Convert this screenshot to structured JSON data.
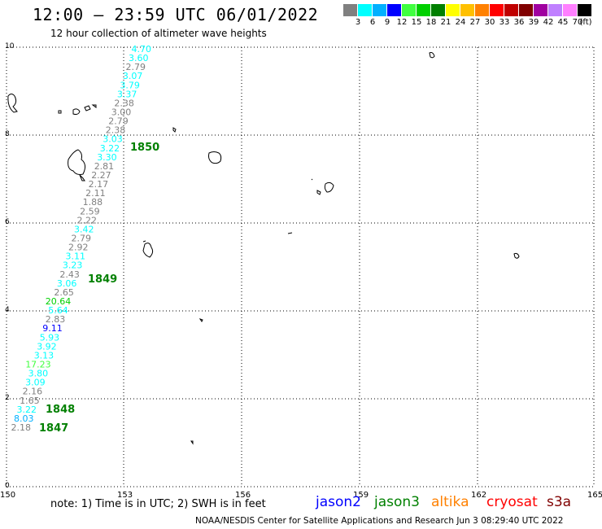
{
  "header": {
    "title": "12:00 – 23:59 UTC 06/01/2022",
    "subtitle": "12 hour collection of altimeter wave heights"
  },
  "legend": {
    "unit": "(ft)",
    "items": [
      {
        "label": "3",
        "color": "#808080"
      },
      {
        "label": "6",
        "color": "#00ffff"
      },
      {
        "label": "9",
        "color": "#00b0ff"
      },
      {
        "label": "12",
        "color": "#0000ff"
      },
      {
        "label": "15",
        "color": "#40ff40"
      },
      {
        "label": "18",
        "color": "#00d000"
      },
      {
        "label": "21",
        "color": "#008000"
      },
      {
        "label": "24",
        "color": "#ffff00"
      },
      {
        "label": "27",
        "color": "#ffc000"
      },
      {
        "label": "30",
        "color": "#ff8000"
      },
      {
        "label": "33",
        "color": "#ff0000"
      },
      {
        "label": "36",
        "color": "#c00000"
      },
      {
        "label": "39",
        "color": "#800000"
      },
      {
        "label": "42",
        "color": "#a000a0"
      },
      {
        "label": "45",
        "color": "#c080ff"
      },
      {
        "label": "70",
        "color": "#ff80ff"
      },
      {
        "label": "",
        "color": "#000000"
      }
    ]
  },
  "axes": {
    "x_ticks": [
      "150",
      "153",
      "156",
      "159",
      "162",
      "165"
    ],
    "y_ticks": [
      "10",
      "8",
      "6",
      "4",
      "2",
      "0"
    ],
    "x_range": [
      150,
      165
    ],
    "y_range": [
      0,
      10
    ],
    "grid": "dotted"
  },
  "wave_heights": [
    {
      "text": "4.70",
      "color": "#00ffff"
    },
    {
      "text": "3.60",
      "color": "#00ffff"
    },
    {
      "text": "2.79",
      "color": "#808080"
    },
    {
      "text": "3.07",
      "color": "#00ffff"
    },
    {
      "text": "3.79",
      "color": "#00ffff"
    },
    {
      "text": "3.37",
      "color": "#00ffff"
    },
    {
      "text": "2.38",
      "color": "#808080"
    },
    {
      "text": "3.00",
      "color": "#808080"
    },
    {
      "text": "2.79",
      "color": "#808080"
    },
    {
      "text": "2.38",
      "color": "#808080"
    },
    {
      "text": "3.03",
      "color": "#00ffff"
    },
    {
      "text": "3.22",
      "color": "#00ffff"
    },
    {
      "text": "3.30",
      "color": "#00ffff"
    },
    {
      "text": "2.81",
      "color": "#808080"
    },
    {
      "text": "2.27",
      "color": "#808080"
    },
    {
      "text": "2.17",
      "color": "#808080"
    },
    {
      "text": "2.11",
      "color": "#808080"
    },
    {
      "text": "1.88",
      "color": "#808080"
    },
    {
      "text": "2.59",
      "color": "#808080"
    },
    {
      "text": "2.22",
      "color": "#808080"
    },
    {
      "text": "3.42",
      "color": "#00ffff"
    },
    {
      "text": "2.79",
      "color": "#808080"
    },
    {
      "text": "2.92",
      "color": "#808080"
    },
    {
      "text": "3.11",
      "color": "#00ffff"
    },
    {
      "text": "3.23",
      "color": "#00ffff"
    },
    {
      "text": "2.43",
      "color": "#808080"
    },
    {
      "text": "3.06",
      "color": "#00ffff"
    },
    {
      "text": "2.65",
      "color": "#808080"
    },
    {
      "text": "20.64",
      "color": "#00d000"
    },
    {
      "text": "5.64",
      "color": "#00ffff"
    },
    {
      "text": "2.83",
      "color": "#808080"
    },
    {
      "text": "9.11",
      "color": "#0000ff"
    },
    {
      "text": "5.93",
      "color": "#00ffff"
    },
    {
      "text": "3.92",
      "color": "#00ffff"
    },
    {
      "text": "3.13",
      "color": "#00ffff"
    },
    {
      "text": "17.23",
      "color": "#40ff40"
    },
    {
      "text": "3.80",
      "color": "#00ffff"
    },
    {
      "text": "3.09",
      "color": "#00ffff"
    },
    {
      "text": "2.16",
      "color": "#808080"
    },
    {
      "text": "1.65",
      "color": "#808080"
    },
    {
      "text": "3.22",
      "color": "#00ffff"
    },
    {
      "text": "8.03",
      "color": "#00b0ff"
    },
    {
      "text": "2.18",
      "color": "#808080"
    }
  ],
  "time_labels": [
    {
      "text": "1850",
      "color": "#008000"
    },
    {
      "text": "1849",
      "color": "#008000"
    },
    {
      "text": "1848",
      "color": "#008000"
    },
    {
      "text": "1847",
      "color": "#008000"
    }
  ],
  "footer": {
    "note": "note:  1) Time is in UTC;  2) SWH is in feet",
    "satellites": [
      {
        "name": "jason2",
        "color": "#0000ff"
      },
      {
        "name": "jason3",
        "color": "#008000"
      },
      {
        "name": "altika",
        "color": "#ff8000"
      },
      {
        "name": "cryosat",
        "color": "#ff0000"
      },
      {
        "name": "s3a",
        "color": "#800000"
      }
    ],
    "credit": "NOAA/NESDIS Center for Satellite Applications and Research    Jun  3 08:29:40 UTC 2022"
  }
}
